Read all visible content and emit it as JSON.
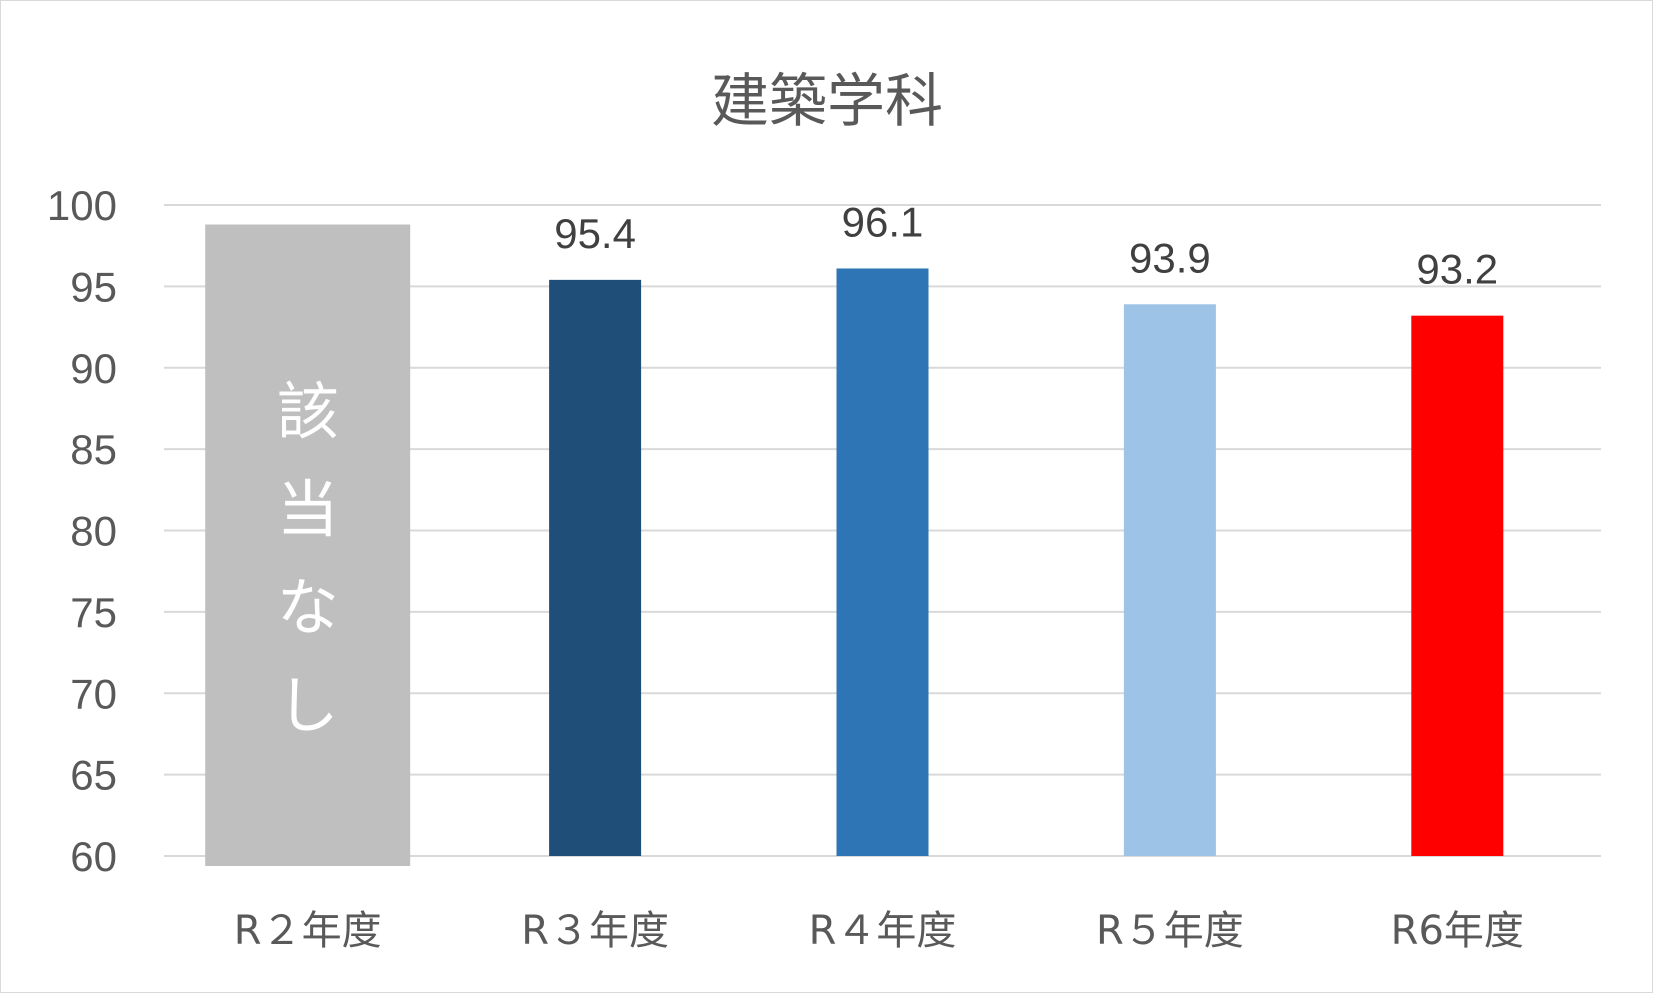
{
  "chart_data": {
    "type": "bar",
    "title": "建築学科",
    "xlabel": "",
    "ylabel": "",
    "ylim": [
      60,
      100
    ],
    "yticks": [
      60,
      65,
      70,
      75,
      80,
      85,
      90,
      95,
      100
    ],
    "grid": true,
    "legend": "none",
    "categories": [
      "R２年度",
      "R３年度",
      "R４年度",
      "R５年度",
      "R6年度"
    ],
    "values": [
      null,
      95.4,
      96.1,
      93.9,
      93.2
    ],
    "data_labels": [
      "",
      "95.4",
      "96.1",
      "93.9",
      "93.2"
    ],
    "not_applicable": {
      "category": "R２年度",
      "text": "該当なし",
      "bar_color": "#bfbfbf"
    },
    "colors": [
      "#bfbfbf",
      "#1f4e79",
      "#2e75b6",
      "#9dc3e6",
      "#ff0000"
    ]
  }
}
